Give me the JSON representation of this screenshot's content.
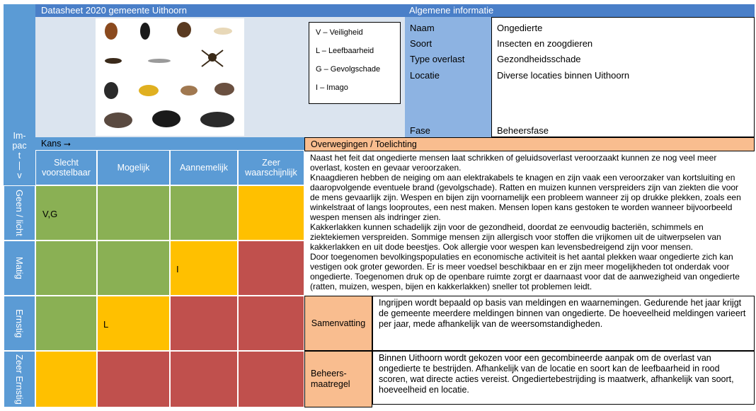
{
  "header": {
    "title": "Datasheet 2020 gemeente Uithoorn",
    "general_info": "Algemene informatie"
  },
  "image": {
    "labels": [
      "Bedwantsen",
      "Boktor",
      "Bonte knaagkever",
      "Houtworm",
      "Oorwurmen",
      "Papiervisjes",
      "Spinnen",
      "Vliegen",
      "Wespen",
      "Bosmuis",
      "Huismuis",
      "Bruine rat",
      "Zwarte rat",
      "Mollen"
    ]
  },
  "legend": {
    "items": [
      "V – Veiligheid",
      "L – Leefbaarheid",
      "G – Gevolgschade",
      "I – Imago"
    ]
  },
  "info": {
    "rows": [
      {
        "label": "Naam",
        "value": "Ongedierte"
      },
      {
        "label": "Soort",
        "value": "Insecten en zoogdieren"
      },
      {
        "label": "Type overlast",
        "value": "Gezondheidsschade"
      },
      {
        "label": "Locatie",
        "value": "Diverse locaties binnen Uithoorn"
      }
    ],
    "fase_label": "Fase",
    "fase_value": "Beheersfase"
  },
  "matrix": {
    "impact_label": "Im-\npac\nt\n|\nv",
    "kans_label": "Kans ⭢",
    "columns": [
      "Slecht voorstelbaar",
      "Mogelijk",
      "Aannemelijk",
      "Zeer waarschijnlijk"
    ],
    "rows": [
      "Geen / licht",
      "Matig",
      "Ernstig",
      "Zeer Ernstig"
    ],
    "colors": {
      "green": "#8ab054",
      "yellow": "#ffc000",
      "red": "#c0504d"
    },
    "cells": [
      [
        "V,G",
        "",
        "",
        ""
      ],
      [
        "",
        "",
        "I",
        ""
      ],
      [
        "",
        "L",
        "",
        ""
      ],
      [
        "",
        "",
        "",
        ""
      ]
    ]
  },
  "considerations": {
    "title": "Overwegingen / Toelichting",
    "paragraphs": [
      "Naast het feit dat ongedierte mensen laat schrikken of geluidsoverlast veroorzaakt kunnen ze nog veel meer overlast, kosten en gevaar veroorzaken.",
      "Knaagdieren hebben de neiging om aan elektrakabels te knagen en zijn vaak een veroorzaker van kortsluiting en daaropvolgende eventuele brand (gevolgschade). Ratten en muizen kunnen verspreiders zijn van ziekten die voor de mens gevaarlijk zijn. Wespen en bijen zijn voornamelijk een probleem wanneer zij op drukke plekken, zoals een winkelstraat of langs looproutes, een nest maken. Mensen lopen kans gestoken te worden wanneer bijvoorbeeld wespen mensen als indringer zien.",
      "Kakkerlakken kunnen schadelijk zijn voor de gezondheid, doordat ze eenvoudig bacteriën, schimmels en ziektekiemen verspreiden. Sommige mensen zijn allergisch voor stoffen die vrijkomen uit de uitwerpselen van kakkerlakken en uit dode beestjes. Ook allergie voor wespen kan levensbedreigend zijn voor mensen.",
      "Door toegenomen bevolkingspopulaties en economische activiteit is het aantal plekken waar ongedierte zich kan vestigen ook groter geworden. Er is meer voedsel beschikbaar en er zijn meer mogelijkheden tot onderdak voor ongedierte. Toegenomen druk op de openbare ruimte zorgt er daarnaast voor dat de aanwezigheid van ongedierte (ratten, muizen, wespen, bijen en kakkerlakken) sneller tot problemen leidt."
    ]
  },
  "summary": {
    "label": "Samenvatting",
    "text": "Ingrijpen wordt bepaald op basis van meldingen en waarnemingen. Gedurende het jaar krijgt de gemeente meerdere meldingen binnen van ongedierte. De hoeveelheid meldingen varieert per jaar, mede afhankelijk van de weersomstandigheden."
  },
  "measure": {
    "label": "Beheers-\nmaatregel",
    "text": "Binnen Uithoorn wordt gekozen voor een gecombineerde aanpak om de overlast van ongedierte te bestrijden. Afhankelijk van de locatie en soort kan de leefbaarheid in rood scoren, wat directe acties vereist. Ongediertebestrijding is maatwerk, afhankelijk van soort, hoeveelheid en locatie."
  }
}
